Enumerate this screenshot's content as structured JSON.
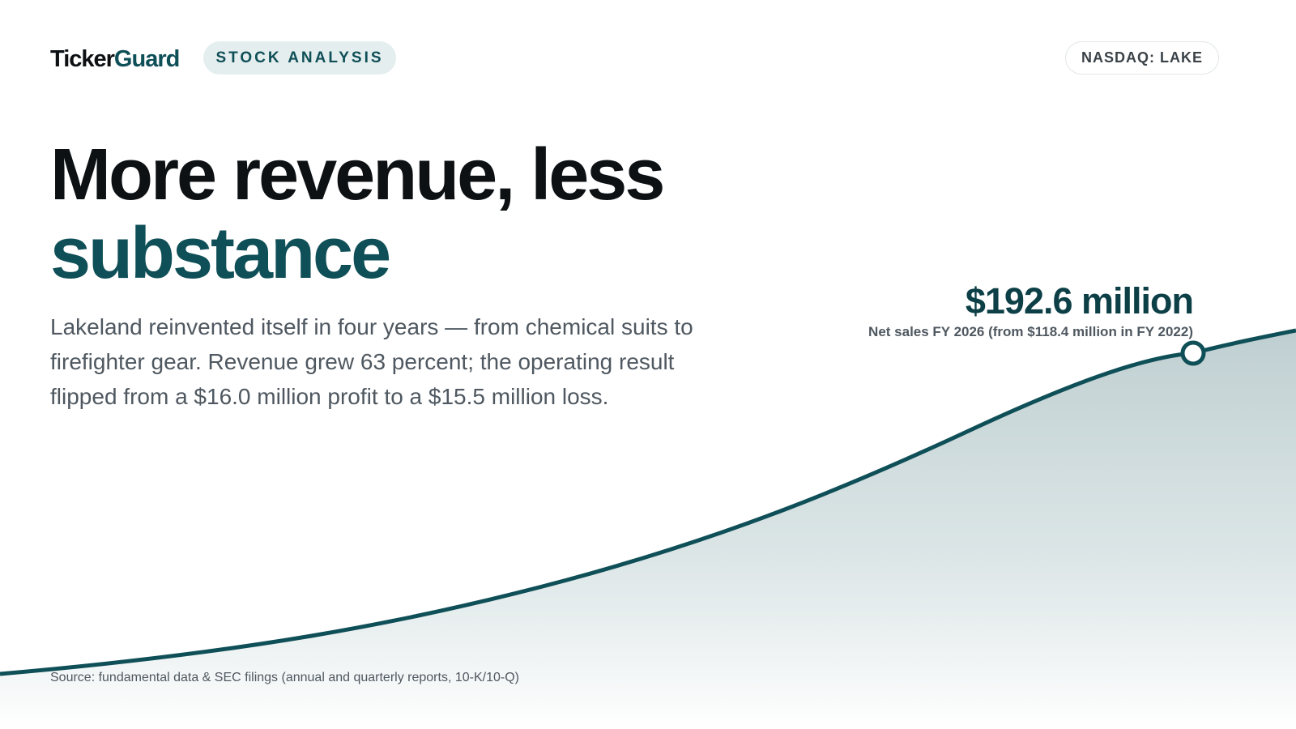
{
  "header": {
    "brand_part1": "Ticker",
    "brand_part2": "Guard",
    "section_label": "STOCK ANALYSIS",
    "ticker_label": "NASDAQ: LAKE"
  },
  "headline": {
    "line1": "More revenue, less",
    "line2": "substance"
  },
  "lede": "Lakeland reinvented itself in four years — from chemical suits to firefighter gear. Revenue grew 63 percent; the operating result flipped from a $16.0 million profit to a $15.5 million loss.",
  "callout": {
    "value": "$192.6 million",
    "caption": "Net sales FY 2026 (from $118.4 million in FY 2022)"
  },
  "source": "Source: fundamental data & SEC filings (annual and quarterly reports, 10-K/10-Q)",
  "colors": {
    "accent": "#0f4f57",
    "text_dark": "#0d1114",
    "text_muted": "#4f5860",
    "pill_bg": "#e4eeee"
  }
}
